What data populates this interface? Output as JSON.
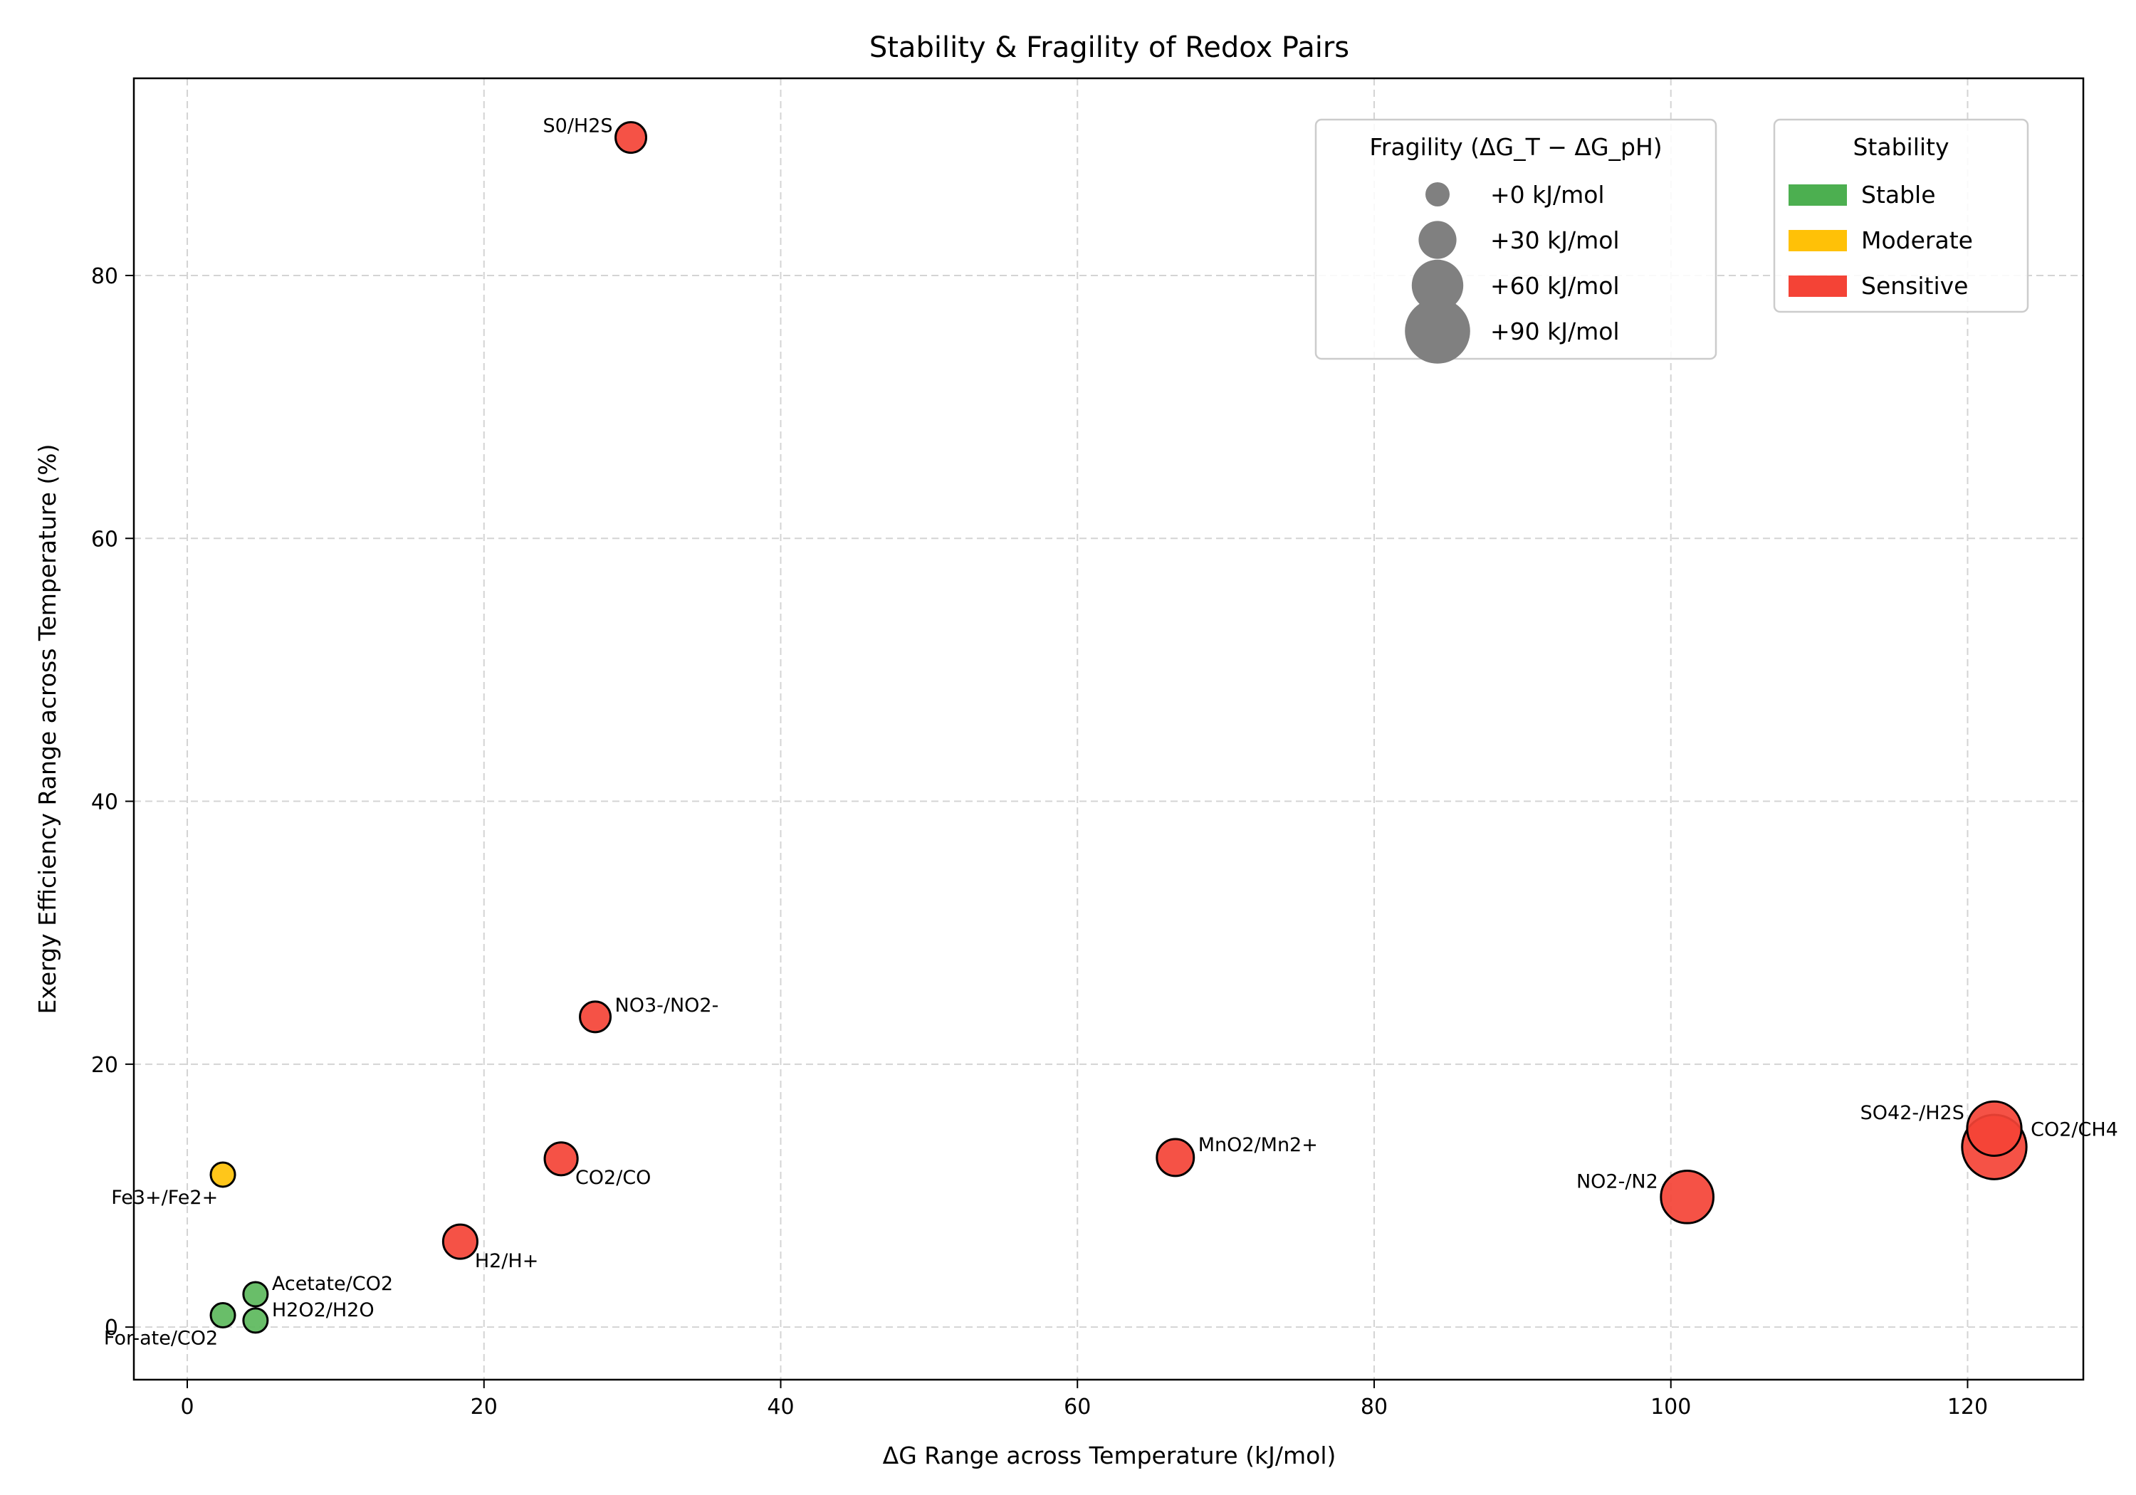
{
  "chart_data": {
    "type": "scatter",
    "title": "Stability & Fragility of Redox Pairs",
    "xlabel": "ΔG Range across Temperature (kJ/mol)",
    "ylabel": "Exergy Efficiency Range across Temperature (%)",
    "xlim": [
      -3.6,
      127.8
    ],
    "ylim": [
      -4,
      95
    ],
    "xticks": [
      0,
      20,
      40,
      60,
      80,
      100,
      120
    ],
    "yticks": [
      0,
      20,
      40,
      60,
      80
    ],
    "grid": true,
    "colors": {
      "Stable": "#5cb85c",
      "Moderate": "#ffc107",
      "Sensitive": "#f44336"
    },
    "points": [
      {
        "label": "S0/H2S",
        "x": 29.9,
        "y": 90.5,
        "fragility": 14,
        "stability": "Sensitive",
        "label_pos": "left"
      },
      {
        "label": "NO3-/NO2-",
        "x": 27.5,
        "y": 23.6,
        "fragility": 14,
        "stability": "Sensitive",
        "label_pos": "right"
      },
      {
        "label": "CO2/CO",
        "x": 25.2,
        "y": 12.8,
        "fragility": 19,
        "stability": "Sensitive",
        "label_pos": "below-right"
      },
      {
        "label": "H2/H+",
        "x": 18.4,
        "y": 6.5,
        "fragility": 22,
        "stability": "Sensitive",
        "label_pos": "below-right"
      },
      {
        "label": "MnO2/Mn2+",
        "x": 66.6,
        "y": 12.9,
        "fragility": 28,
        "stability": "Sensitive",
        "label_pos": "right"
      },
      {
        "label": "NO2-/N2",
        "x": 101.1,
        "y": 9.9,
        "fragility": 62,
        "stability": "Sensitive",
        "label_pos": "left"
      },
      {
        "label": "SO42-/H2S",
        "x": 121.8,
        "y": 15.1,
        "fragility": 66,
        "stability": "Sensitive",
        "label_pos": "left"
      },
      {
        "label": "CO2/CH4",
        "x": 121.8,
        "y": 13.7,
        "fragility": 88,
        "stability": "Sensitive",
        "label_pos": "right"
      },
      {
        "label": "Fe3+/Fe2+",
        "x": 2.4,
        "y": 11.6,
        "fragility": 0,
        "stability": "Moderate",
        "label_pos": "below-left"
      },
      {
        "label": "Acetate/CO2",
        "x": 4.6,
        "y": 2.5,
        "fragility": 0,
        "stability": "Stable",
        "label_pos": "right"
      },
      {
        "label": "For-ate/CO2",
        "x": 2.4,
        "y": 0.9,
        "fragility": 0,
        "stability": "Stable",
        "label_pos": "below-left"
      },
      {
        "label": "H2O2/H2O",
        "x": 4.6,
        "y": 0.5,
        "fragility": 0,
        "stability": "Stable",
        "label_pos": "right"
      }
    ],
    "size_legend": {
      "title": "Fragility (ΔG_T − ΔG_pH)",
      "entries": [
        {
          "label": "+0 kJ/mol",
          "value": 0
        },
        {
          "label": "+30 kJ/mol",
          "value": 30
        },
        {
          "label": "+60 kJ/mol",
          "value": 60
        },
        {
          "label": "+90 kJ/mol",
          "value": 90
        }
      ],
      "marker_color": "#808080"
    },
    "color_legend": {
      "title": "Stability",
      "entries": [
        {
          "label": "Stable",
          "color": "#4caf50"
        },
        {
          "label": "Moderate",
          "color": "#ffc107"
        },
        {
          "label": "Sensitive",
          "color": "#f44336"
        }
      ]
    },
    "legend_position": "top-right"
  }
}
